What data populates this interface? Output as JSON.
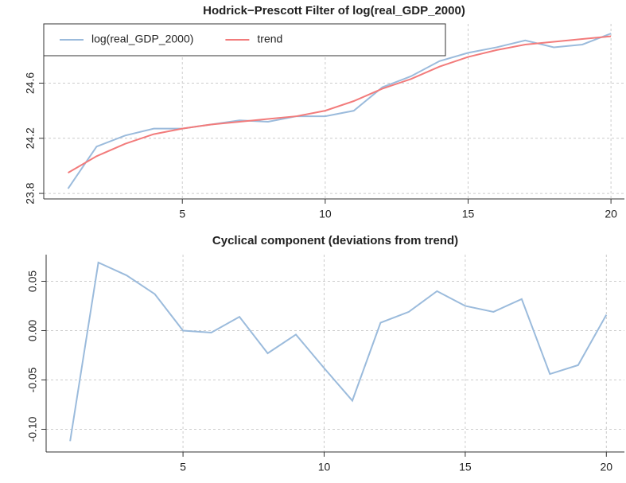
{
  "chart_data": [
    {
      "type": "line",
      "title": "Hodrick−Prescott Filter of log(real_GDP_2000)",
      "x": [
        1,
        2,
        3,
        4,
        5,
        6,
        7,
        8,
        9,
        10,
        11,
        12,
        13,
        14,
        15,
        16,
        17,
        18,
        19,
        20
      ],
      "series": [
        {
          "name": "log(real_GDP_2000)",
          "color": "#9bbbdc",
          "values": [
            23.835,
            24.14,
            24.22,
            24.27,
            24.27,
            24.3,
            24.33,
            24.32,
            24.36,
            24.36,
            24.4,
            24.57,
            24.65,
            24.76,
            24.82,
            24.86,
            24.91,
            24.86,
            24.88,
            24.96
          ]
        },
        {
          "name": "trend",
          "color": "#f27b7b",
          "values": [
            23.95,
            24.07,
            24.16,
            24.23,
            24.27,
            24.3,
            24.32,
            24.34,
            24.36,
            24.4,
            24.47,
            24.56,
            24.63,
            24.72,
            24.79,
            24.84,
            24.88,
            24.9,
            24.92,
            24.94
          ]
        }
      ],
      "xlim": [
        0.15,
        20.47
      ],
      "xticks": [
        5,
        10,
        15,
        20
      ],
      "ylim": [
        23.76,
        25.03
      ],
      "yticks": [
        23.8,
        24.2,
        24.6
      ],
      "grid": true,
      "legend": "top-left"
    },
    {
      "type": "line",
      "title": "Cyclical component (deviations from trend)",
      "x": [
        1,
        2,
        3,
        4,
        5,
        6,
        7,
        8,
        9,
        10,
        11,
        12,
        13,
        14,
        15,
        16,
        17,
        18,
        19,
        20
      ],
      "series": [
        {
          "color": "#9bbbdc",
          "values": [
            -0.112,
            0.069,
            0.056,
            0.037,
            0.0,
            -0.002,
            0.014,
            -0.023,
            -0.004,
            -0.038,
            -0.071,
            0.008,
            0.019,
            0.04,
            0.025,
            0.019,
            0.032,
            -0.044,
            -0.035,
            0.016
          ]
        }
      ],
      "xlim": [
        0.15,
        20.64
      ],
      "xticks": [
        5,
        10,
        15,
        20
      ],
      "ylim": [
        -0.123,
        0.077
      ],
      "yticks": [
        0.05,
        {
          "value": 0,
          "label": "0.00"
        },
        -0.05,
        {
          "value": -0.1,
          "label": "-0.10"
        }
      ],
      "grid": true
    }
  ]
}
